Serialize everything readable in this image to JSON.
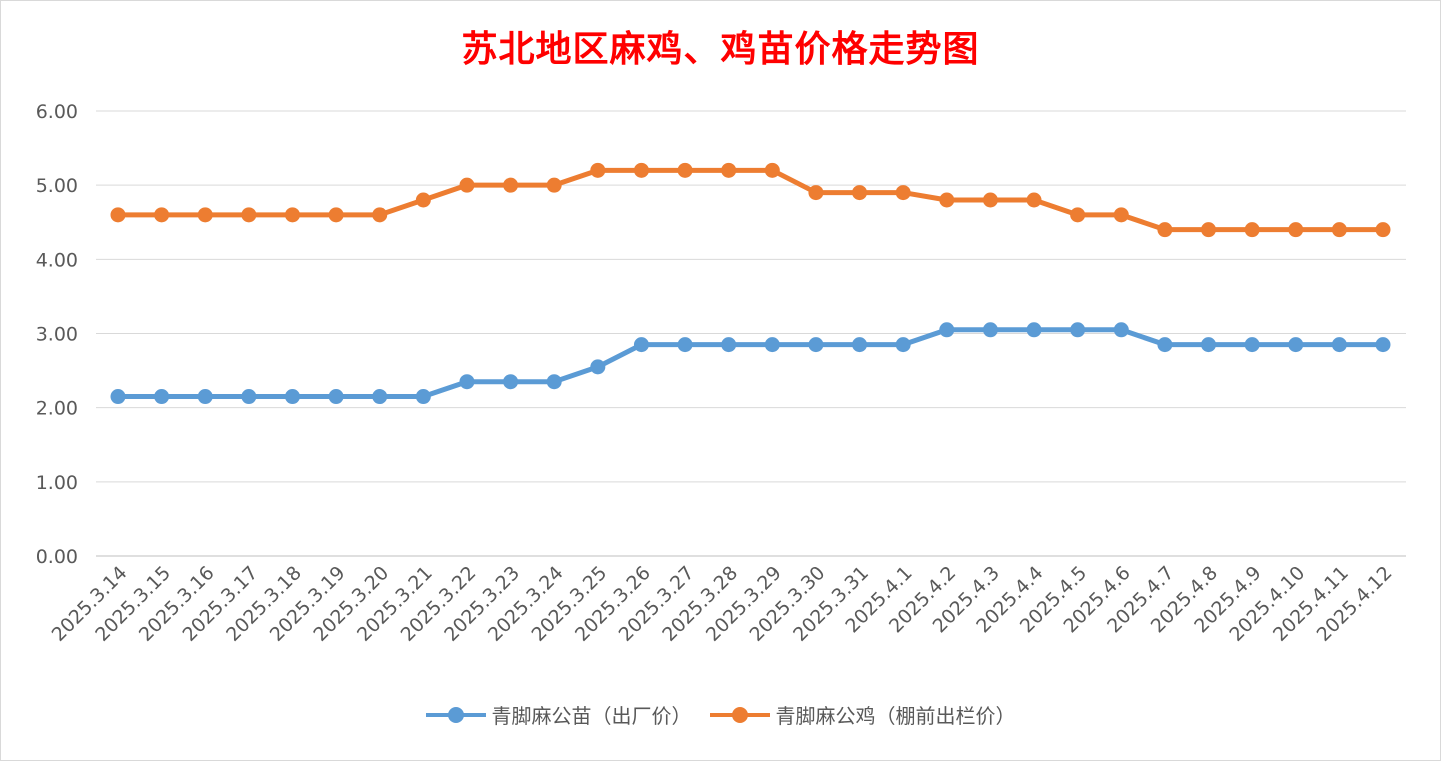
{
  "chart_data": {
    "type": "line",
    "title": "苏北地区麻鸡、鸡苗价格走势图",
    "xlabel": "",
    "ylabel": "",
    "categories": [
      "2025.3.14",
      "2025.3.15",
      "2025.3.16",
      "2025.3.17",
      "2025.3.18",
      "2025.3.19",
      "2025.3.20",
      "2025.3.21",
      "2025.3.22",
      "2025.3.23",
      "2025.3.24",
      "2025.3.25",
      "2025.3.26",
      "2025.3.27",
      "2025.3.28",
      "2025.3.29",
      "2025.3.30",
      "2025.3.31",
      "2025.4.1",
      "2025.4.2",
      "2025.4.3",
      "2025.4.4",
      "2025.4.5",
      "2025.4.6",
      "2025.4.7",
      "2025.4.8",
      "2025.4.9",
      "2025.4.10",
      "2025.4.11",
      "2025.4.12"
    ],
    "ylim": [
      0,
      6
    ],
    "yticks": [
      "0.00",
      "1.00",
      "2.00",
      "3.00",
      "4.00",
      "5.00",
      "6.00"
    ],
    "grid": true,
    "legend_position": "bottom",
    "series": [
      {
        "name": "青脚麻公苗（出厂价）",
        "color": "#5b9bd5",
        "values": [
          2.15,
          2.15,
          2.15,
          2.15,
          2.15,
          2.15,
          2.15,
          2.15,
          2.35,
          2.35,
          2.35,
          2.55,
          2.85,
          2.85,
          2.85,
          2.85,
          2.85,
          2.85,
          2.85,
          3.05,
          3.05,
          3.05,
          3.05,
          3.05,
          2.85,
          2.85,
          2.85,
          2.85,
          2.85,
          2.85
        ]
      },
      {
        "name": "青脚麻公鸡（棚前出栏价）",
        "color": "#ed7d31",
        "values": [
          4.6,
          4.6,
          4.6,
          4.6,
          4.6,
          4.6,
          4.6,
          4.8,
          5.0,
          5.0,
          5.0,
          5.2,
          5.2,
          5.2,
          5.2,
          5.2,
          4.9,
          4.9,
          4.9,
          4.8,
          4.8,
          4.8,
          4.6,
          4.6,
          4.4,
          4.4,
          4.4,
          4.4,
          4.4,
          4.4
        ]
      }
    ]
  }
}
